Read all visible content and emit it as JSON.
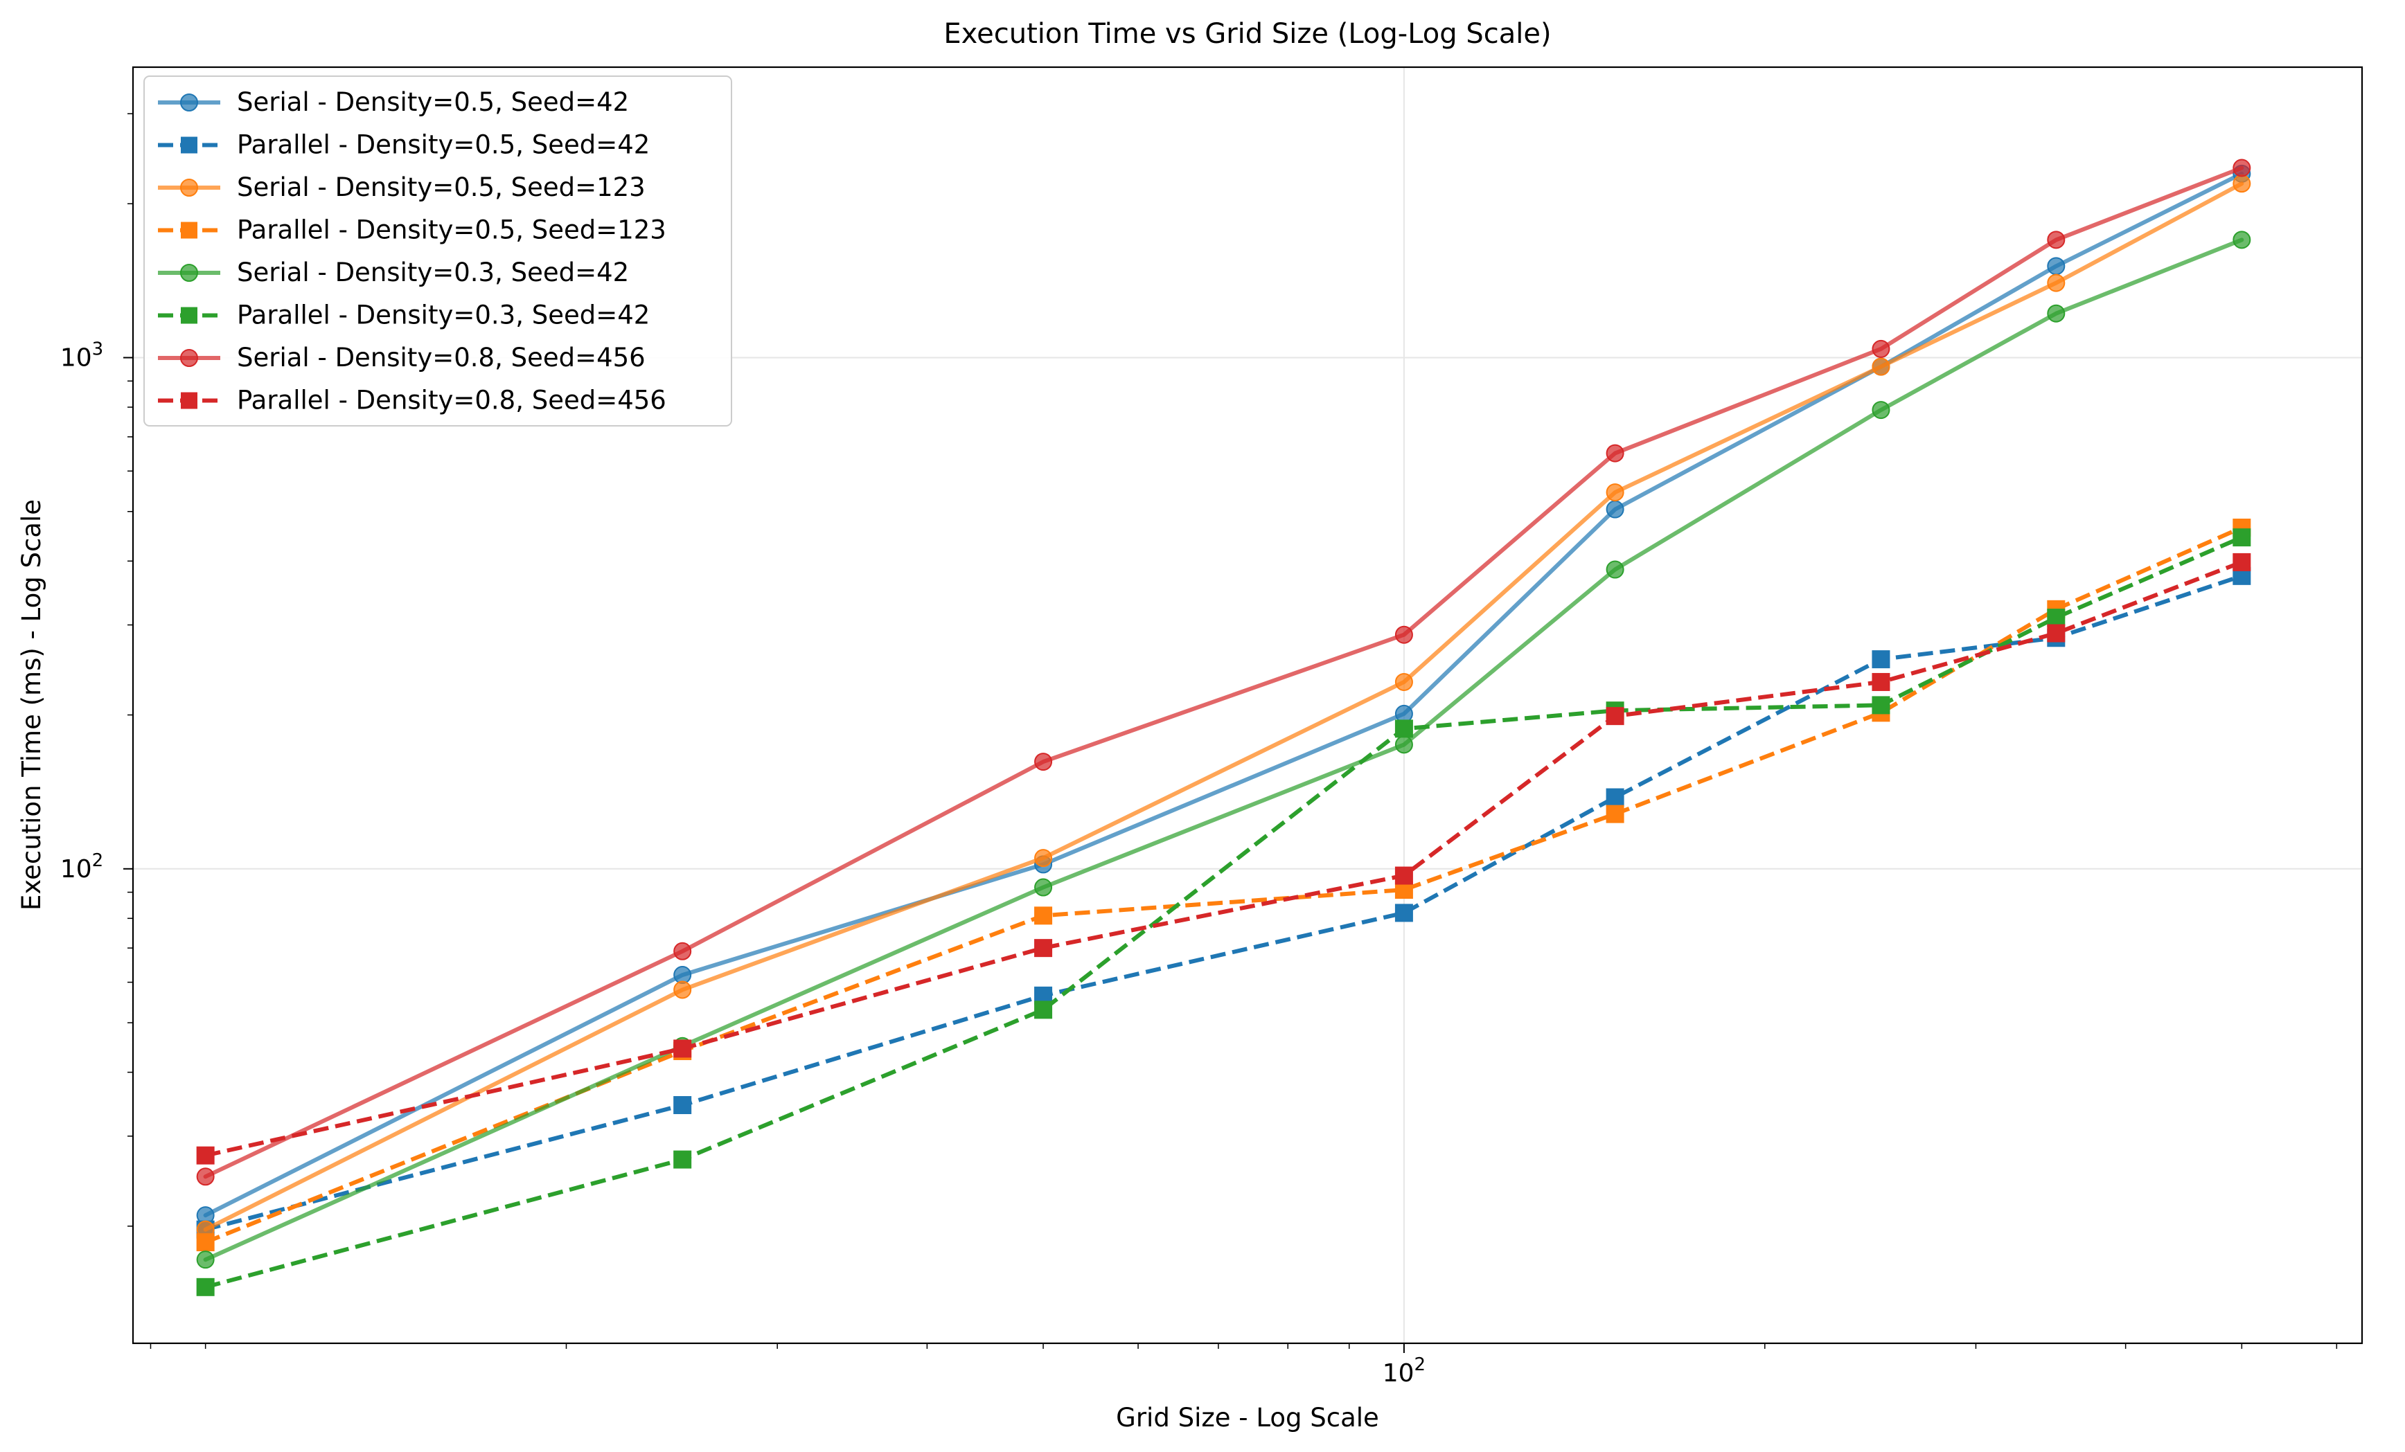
{
  "chart_data": {
    "type": "line",
    "title": "Execution Time vs Grid Size (Log-Log Scale)",
    "xlabel": "Grid Size - Log Scale",
    "ylabel": "Execution Time (ms) - Log Scale",
    "xscale": "log",
    "yscale": "log",
    "xlim": [
      8.7,
      630
    ],
    "ylim": [
      11.8,
      3700
    ],
    "grid": true,
    "legend_position": "top-left",
    "xticks": [
      {
        "value": 100,
        "base": "10",
        "exp": "2"
      }
    ],
    "yticks": [
      {
        "value": 100,
        "base": "10",
        "exp": "2"
      },
      {
        "value": 1000,
        "base": "10",
        "exp": "3"
      }
    ],
    "x": [
      10,
      25,
      50,
      100,
      150,
      250,
      350,
      500
    ],
    "series": [
      {
        "name": "Serial - Density=0.5, Seed=42",
        "color": "#1f77b4",
        "style": "solid",
        "marker": "circle",
        "values": [
          21,
          62,
          102,
          201,
          505,
          960,
          1510,
          2290
        ]
      },
      {
        "name": "Parallel - Density=0.5, Seed=42",
        "color": "#1f77b4",
        "style": "dashed",
        "marker": "square",
        "values": [
          19.7,
          34.5,
          56.5,
          82,
          138,
          257,
          283,
          374
        ]
      },
      {
        "name": "Serial - Density=0.5, Seed=123",
        "color": "#ff7f0e",
        "style": "solid",
        "marker": "circle",
        "values": [
          19.7,
          58,
          105,
          232,
          545,
          960,
          1400,
          2190
        ]
      },
      {
        "name": "Parallel - Density=0.5, Seed=123",
        "color": "#ff7f0e",
        "style": "dashed",
        "marker": "square",
        "values": [
          18.6,
          44,
          81,
          91,
          128,
          202,
          322,
          465
        ]
      },
      {
        "name": "Serial - Density=0.3, Seed=42",
        "color": "#2ca02c",
        "style": "solid",
        "marker": "circle",
        "values": [
          17.2,
          45,
          92,
          175,
          385,
          790,
          1220,
          1700
        ]
      },
      {
        "name": "Parallel - Density=0.3, Seed=42",
        "color": "#2ca02c",
        "style": "dashed",
        "marker": "square",
        "values": [
          15.2,
          27,
          53,
          188,
          204,
          209,
          310,
          445
        ]
      },
      {
        "name": "Serial - Density=0.8, Seed=456",
        "color": "#d62728",
        "style": "solid",
        "marker": "circle",
        "values": [
          25,
          69,
          162,
          287,
          650,
          1040,
          1700,
          2350
        ]
      },
      {
        "name": "Parallel - Density=0.8, Seed=456",
        "color": "#d62728",
        "style": "dashed",
        "marker": "square",
        "values": [
          27.5,
          44.5,
          70,
          97,
          199,
          232,
          289,
          398
        ]
      }
    ]
  }
}
